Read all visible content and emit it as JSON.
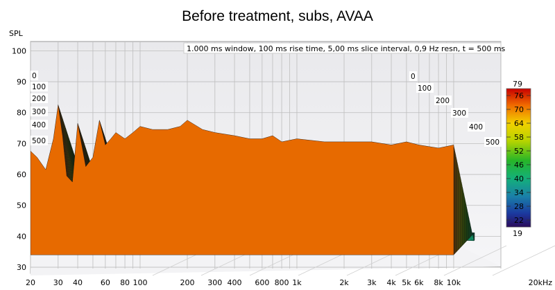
{
  "chart_data": {
    "type": "waterfall",
    "title": "Before treatment, subs, AVAA",
    "ylabel": "SPL",
    "info_text": "1.000 ms window, 100 ms rise time, 5,00 ms slice interval, 0,9 Hz resn, t = 500 ms",
    "y_ticks": [
      100,
      90,
      80,
      70,
      60,
      50,
      40,
      30
    ],
    "ylim": [
      28,
      103
    ],
    "x_scale": "log",
    "x_tick_labels": [
      {
        "label": "20",
        "value": 20
      },
      {
        "label": "30",
        "value": 30
      },
      {
        "label": "40",
        "value": 40
      },
      {
        "label": "60",
        "value": 60
      },
      {
        "label": "80",
        "value": 80
      },
      {
        "label": "100",
        "value": 100
      },
      {
        "label": "200",
        "value": 200
      },
      {
        "label": "300",
        "value": 300
      },
      {
        "label": "400",
        "value": 400
      },
      {
        "label": "600",
        "value": 600
      },
      {
        "label": "800",
        "value": 800
      },
      {
        "label": "1k",
        "value": 1000
      },
      {
        "label": "2k",
        "value": 2000
      },
      {
        "label": "3k",
        "value": 3000
      },
      {
        "label": "4k",
        "value": 4000
      },
      {
        "label": "5k",
        "value": 5000
      },
      {
        "label": "6k",
        "value": 6000
      },
      {
        "label": "8k",
        "value": 8000
      },
      {
        "label": "10k",
        "value": 10000
      },
      {
        "label": "20kHz",
        "value": 20000
      }
    ],
    "xlim": [
      20,
      20000
    ],
    "time_ticks_ms": [
      "0",
      "100",
      "200",
      "300",
      "400",
      "500"
    ],
    "colorbar": {
      "max_label": "79",
      "min_label": "19",
      "ticks": [
        76,
        70,
        64,
        58,
        52,
        46,
        40,
        34,
        28,
        22
      ]
    },
    "series": [
      {
        "x": [
          20,
          22,
          25,
          28,
          30,
          32,
          34,
          37,
          40,
          45,
          50,
          55,
          60,
          65,
          70,
          80,
          90,
          100,
          120,
          150,
          180,
          200,
          250,
          300,
          400,
          500,
          600,
          700,
          800,
          1000,
          1500,
          2000,
          3000,
          4000,
          5000,
          6000,
          8000,
          10000
        ],
        "y": [
          68,
          66,
          62,
          72,
          83,
          73,
          60,
          58,
          77,
          63,
          66,
          78,
          70,
          72,
          74,
          72,
          74,
          76,
          75,
          75,
          76,
          78,
          75,
          74,
          73,
          72,
          72,
          73,
          71,
          72,
          71,
          71,
          71,
          70,
          71,
          70,
          69,
          70
        ]
      }
    ]
  }
}
